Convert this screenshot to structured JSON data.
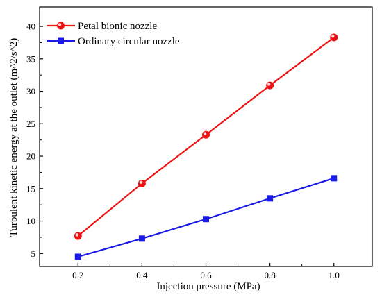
{
  "chart_data": {
    "type": "line",
    "title": "",
    "xlabel": "Injection pressure (MPa)",
    "ylabel": "Turbulent kinetic energy at the outlet (m^2/s^2)",
    "x": [
      0.2,
      0.4,
      0.6,
      0.8,
      1.0
    ],
    "x_tick_labels": [
      "0.2",
      "0.4",
      "0.6",
      "0.8",
      "1.0"
    ],
    "y_tick_labels": [
      "5",
      "10",
      "15",
      "20",
      "25",
      "30",
      "35",
      "40"
    ],
    "xlim": [
      0.08,
      1.12
    ],
    "ylim": [
      3,
      43
    ],
    "grid": false,
    "legend_position": "top-left",
    "series": [
      {
        "name": "Petal bionic nozzle",
        "marker": "circle",
        "color": "#ee1111",
        "values": [
          7.7,
          15.8,
          23.3,
          30.9,
          38.3
        ]
      },
      {
        "name": "Ordinary circular nozzle",
        "marker": "square",
        "color": "#1a1ae6",
        "values": [
          4.5,
          7.3,
          10.3,
          13.5,
          16.6
        ]
      }
    ]
  }
}
